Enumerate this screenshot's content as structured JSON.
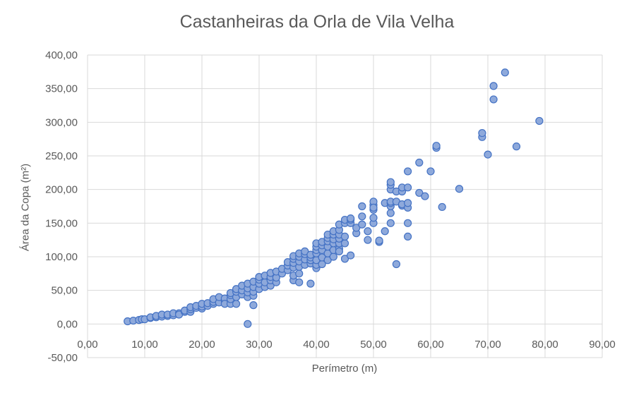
{
  "chart_data": {
    "type": "scatter",
    "title": "Castanheiras da Orla de Vila Velha",
    "xlabel": "Perímetro (m)",
    "ylabel": "Área da Copa (m²)",
    "xlim": [
      0,
      90
    ],
    "ylim": [
      -50,
      400
    ],
    "x_ticks": [
      0,
      10,
      20,
      30,
      40,
      50,
      60,
      70,
      80,
      90
    ],
    "y_ticks": [
      -50,
      0,
      50,
      100,
      150,
      200,
      250,
      300,
      350,
      400
    ],
    "x_tick_labels": [
      "0,00",
      "10,00",
      "20,00",
      "30,00",
      "40,00",
      "50,00",
      "60,00",
      "70,00",
      "80,00",
      "90,00"
    ],
    "y_tick_labels": [
      "-50,00",
      "0,00",
      "50,00",
      "100,00",
      "150,00",
      "200,00",
      "250,00",
      "300,00",
      "350,00",
      "400,00"
    ],
    "grid": true,
    "legend": "none",
    "colors": {
      "marker_fill": "#8EA9DB",
      "marker_stroke": "#4472C4",
      "grid": "#D9D9D9",
      "text": "#595959"
    },
    "series": [
      {
        "points": [
          [
            7,
            4
          ],
          [
            8,
            5
          ],
          [
            9,
            6
          ],
          [
            9.5,
            7
          ],
          [
            10,
            7
          ],
          [
            11,
            9
          ],
          [
            11,
            10
          ],
          [
            12,
            10
          ],
          [
            12,
            12
          ],
          [
            13,
            11
          ],
          [
            13,
            14
          ],
          [
            14,
            12
          ],
          [
            14,
            14
          ],
          [
            15,
            13
          ],
          [
            15,
            16
          ],
          [
            16,
            16
          ],
          [
            16,
            14
          ],
          [
            17,
            18
          ],
          [
            17,
            20
          ],
          [
            18,
            18
          ],
          [
            18,
            22
          ],
          [
            18,
            25
          ],
          [
            19,
            24
          ],
          [
            19,
            27
          ],
          [
            20,
            23
          ],
          [
            20,
            26
          ],
          [
            20,
            30
          ],
          [
            21,
            27
          ],
          [
            21,
            31
          ],
          [
            22,
            30
          ],
          [
            22,
            33
          ],
          [
            22,
            37
          ],
          [
            23,
            32
          ],
          [
            23,
            40
          ],
          [
            24,
            34
          ],
          [
            24,
            38
          ],
          [
            24,
            30
          ],
          [
            25,
            30
          ],
          [
            25,
            37
          ],
          [
            25,
            43
          ],
          [
            25,
            46
          ],
          [
            26,
            30
          ],
          [
            26,
            40
          ],
          [
            26,
            48
          ],
          [
            26,
            52
          ],
          [
            27,
            44
          ],
          [
            27,
            50
          ],
          [
            27,
            57
          ],
          [
            28,
            40
          ],
          [
            28,
            47
          ],
          [
            28,
            53
          ],
          [
            28,
            60
          ],
          [
            28,
            0
          ],
          [
            29,
            42
          ],
          [
            29,
            48
          ],
          [
            29,
            55
          ],
          [
            29,
            63
          ],
          [
            29,
            28
          ],
          [
            30,
            52
          ],
          [
            30,
            60
          ],
          [
            30,
            66
          ],
          [
            30,
            70
          ],
          [
            31,
            55
          ],
          [
            31,
            62
          ],
          [
            31,
            72
          ],
          [
            32,
            57
          ],
          [
            32,
            65
          ],
          [
            32,
            70
          ],
          [
            32,
            76
          ],
          [
            33,
            62
          ],
          [
            33,
            69
          ],
          [
            33,
            78
          ],
          [
            34,
            75
          ],
          [
            34,
            82
          ],
          [
            35,
            80
          ],
          [
            35,
            87
          ],
          [
            35,
            92
          ],
          [
            36,
            65
          ],
          [
            36,
            72
          ],
          [
            36,
            84
          ],
          [
            36,
            91
          ],
          [
            36,
            97
          ],
          [
            36,
            101
          ],
          [
            37,
            62
          ],
          [
            37,
            75
          ],
          [
            37,
            85
          ],
          [
            37,
            93
          ],
          [
            37,
            100
          ],
          [
            37,
            105
          ],
          [
            38,
            88
          ],
          [
            38,
            96
          ],
          [
            38,
            104
          ],
          [
            38,
            108
          ],
          [
            39,
            60
          ],
          [
            39,
            90
          ],
          [
            39,
            95
          ],
          [
            39,
            99
          ],
          [
            39,
            103
          ],
          [
            40,
            83
          ],
          [
            40,
            88
          ],
          [
            40,
            95
          ],
          [
            40,
            105
          ],
          [
            40,
            110
          ],
          [
            40,
            115
          ],
          [
            40,
            120
          ],
          [
            41,
            89
          ],
          [
            41,
            99
          ],
          [
            41,
            110
          ],
          [
            41,
            117
          ],
          [
            41,
            122
          ],
          [
            42,
            95
          ],
          [
            42,
            105
          ],
          [
            42,
            115
          ],
          [
            42,
            123
          ],
          [
            42,
            128
          ],
          [
            42,
            133
          ],
          [
            43,
            100
          ],
          [
            43,
            110
          ],
          [
            43,
            120
          ],
          [
            43,
            126
          ],
          [
            43,
            133
          ],
          [
            43,
            138
          ],
          [
            44,
            112
          ],
          [
            44,
            120
          ],
          [
            44,
            127
          ],
          [
            44,
            133
          ],
          [
            44,
            140
          ],
          [
            44,
            148
          ],
          [
            44,
            108
          ],
          [
            45,
            97
          ],
          [
            45,
            120
          ],
          [
            45,
            130
          ],
          [
            45,
            150
          ],
          [
            45,
            155
          ],
          [
            46,
            102
          ],
          [
            46,
            150
          ],
          [
            46,
            155
          ],
          [
            46,
            157
          ],
          [
            47,
            135
          ],
          [
            47,
            143
          ],
          [
            48,
            148
          ],
          [
            48,
            160
          ],
          [
            48,
            175
          ],
          [
            49,
            125
          ],
          [
            49,
            138
          ],
          [
            50,
            150
          ],
          [
            50,
            158
          ],
          [
            50,
            170
          ],
          [
            50,
            177
          ],
          [
            50,
            182
          ],
          [
            50,
            173
          ],
          [
            51,
            122
          ],
          [
            51,
            124
          ],
          [
            52,
            138
          ],
          [
            52,
            180
          ],
          [
            53,
            150
          ],
          [
            53,
            165
          ],
          [
            53,
            175
          ],
          [
            53,
            180
          ],
          [
            53,
            182
          ],
          [
            53,
            200
          ],
          [
            53,
            207
          ],
          [
            53,
            211
          ],
          [
            54,
            89
          ],
          [
            54,
            182
          ],
          [
            54,
            197
          ],
          [
            55,
            176
          ],
          [
            55,
            178
          ],
          [
            55,
            197
          ],
          [
            55,
            203
          ],
          [
            56,
            130
          ],
          [
            56,
            150
          ],
          [
            56,
            173
          ],
          [
            56,
            180
          ],
          [
            56,
            203
          ],
          [
            56,
            227
          ],
          [
            58,
            195
          ],
          [
            58,
            240
          ],
          [
            59,
            190
          ],
          [
            60,
            227
          ],
          [
            61,
            262
          ],
          [
            61,
            265
          ],
          [
            62,
            174
          ],
          [
            65,
            201
          ],
          [
            69,
            278
          ],
          [
            69,
            284
          ],
          [
            70,
            252
          ],
          [
            71,
            334
          ],
          [
            71,
            354
          ],
          [
            73,
            374
          ],
          [
            75,
            264
          ],
          [
            79,
            302
          ]
        ]
      }
    ]
  }
}
